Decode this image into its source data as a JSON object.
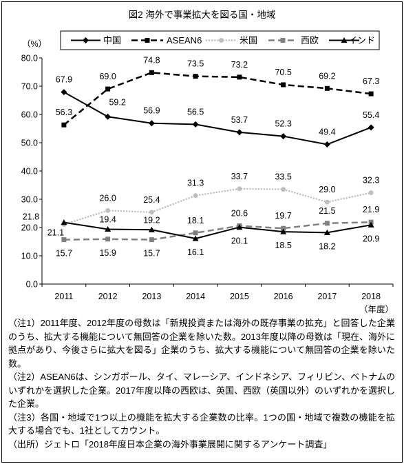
{
  "chart_data": {
    "type": "line",
    "title": "図2 海外で事業拡大を図る国・地域",
    "xlabel": "（年度）",
    "ylabel": "（%）",
    "categories": [
      "2011",
      "2012",
      "2013",
      "2014",
      "2015",
      "2016",
      "2017",
      "2018"
    ],
    "ylim": [
      0,
      80
    ],
    "yticks": [
      "0.0",
      "10.0",
      "20.0",
      "30.0",
      "40.0",
      "50.0",
      "60.0",
      "70.0",
      "80.0"
    ],
    "grid": false,
    "legend_position": "top",
    "series": [
      {
        "name": "中国",
        "values": [
          67.9,
          59.2,
          56.9,
          56.5,
          53.7,
          52.3,
          49.4,
          55.4
        ],
        "color": "#000000",
        "line_style": "solid",
        "marker": "diamond"
      },
      {
        "name": "ASEAN6",
        "values": [
          56.3,
          69.0,
          74.8,
          73.5,
          73.2,
          70.5,
          69.2,
          67.3
        ],
        "color": "#000000",
        "line_style": "dashed",
        "marker": "square"
      },
      {
        "name": "米国",
        "values": [
          21.1,
          26.0,
          25.4,
          31.3,
          33.7,
          33.5,
          29.0,
          32.3
        ],
        "color": "#bfbfbf",
        "line_style": "dotted",
        "marker": "circle"
      },
      {
        "name": "西欧",
        "values": [
          15.7,
          15.9,
          15.7,
          18.1,
          20.6,
          19.7,
          21.5,
          21.9
        ],
        "color": "#808080",
        "line_style": "dashed",
        "marker": "square"
      },
      {
        "name": "インド",
        "values": [
          21.8,
          19.4,
          19.2,
          16.1,
          20.1,
          18.5,
          18.2,
          20.9
        ],
        "color": "#000000",
        "line_style": "solid",
        "marker": "triangle"
      }
    ]
  },
  "notes": [
    "（注1）2011年度、2012年度の母数は「新規投資または海外の既存事業の拡充」と回答した企業のうち、拡大する機能について無回答の企業を除いた数。2013年度以降の母数は「現在、海外に拠点があり、今後さらに拡大を図る」企業のうち、拡大する機能について無回答の企業を除いた数。",
    "（注2）ASEAN6は、シンガポール、タイ、マレーシア、インドネシア、フィリピン、ベトナムのいずれかを選択した企業。2017年度以降の西欧は、英国、西欧（英国以外）のいずれかを選択した企業。",
    "（注3）各国・地域で1つ以上の機能を拡大する企業数の比率。1つの国・地域で複数の機能を拡大する場合でも、1社としてカウント。"
  ],
  "source": "（出所）ジェトロ「2018年度日本企業の海外事業展開に関するアンケート調査」"
}
